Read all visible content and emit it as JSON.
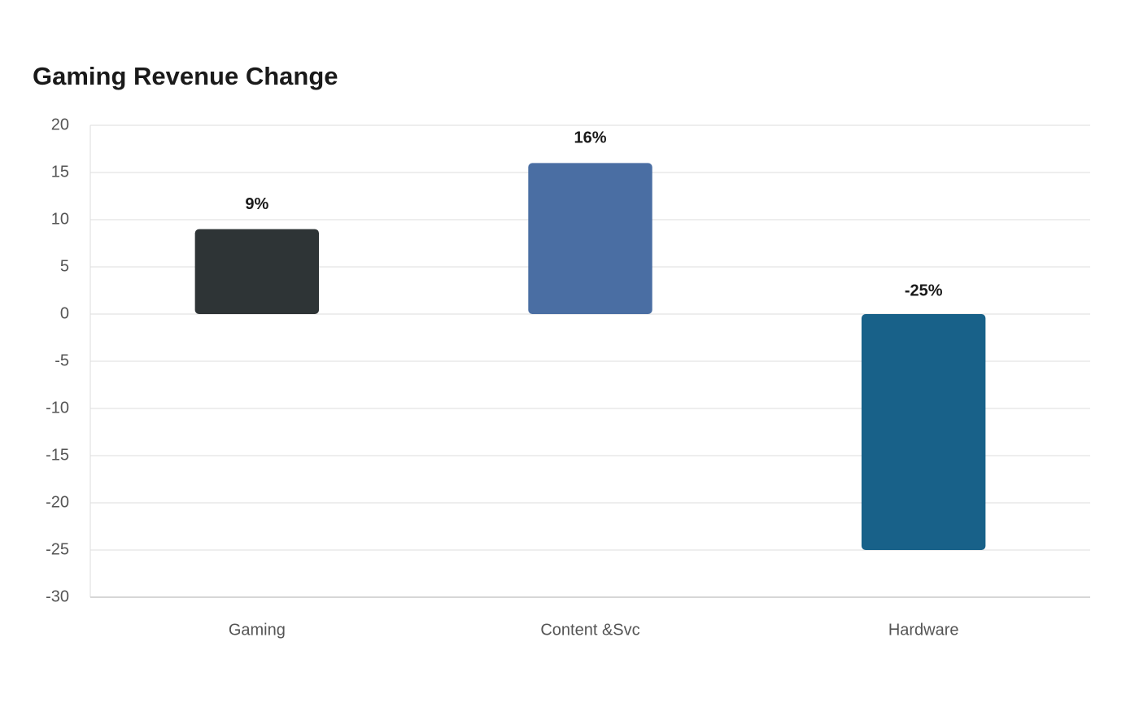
{
  "chart_data": {
    "type": "bar",
    "title": "Gaming Revenue Change",
    "categories": [
      "Gaming",
      "Content &Svc",
      "Hardware"
    ],
    "values": [
      9,
      16,
      -25
    ],
    "value_labels": [
      "9%",
      "16%",
      "-25%"
    ],
    "colors": [
      "#2e3436",
      "#4a6ea3",
      "#186189"
    ],
    "ylim": [
      -30,
      20
    ],
    "yticks": [
      -30,
      -25,
      -20,
      -15,
      -10,
      -5,
      0,
      5,
      10,
      15,
      20
    ],
    "grid": true
  }
}
